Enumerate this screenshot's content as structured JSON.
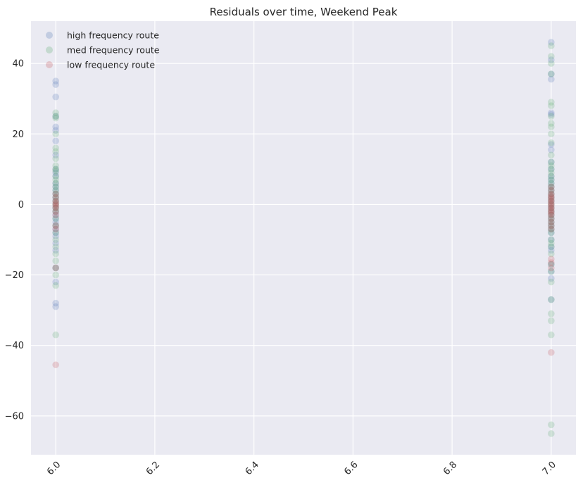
{
  "chart_data": {
    "type": "scatter",
    "title": "Residuals over time, Weekend Peak",
    "xlabel": "",
    "ylabel": "",
    "xlim": [
      5.95,
      7.05
    ],
    "ylim": [
      -71,
      52
    ],
    "x_ticks": [
      6.0,
      6.2,
      6.4,
      6.6,
      6.8,
      7.0
    ],
    "x_tick_labels": [
      "6.0",
      "6.2",
      "6.4",
      "6.6",
      "6.8",
      "7.0"
    ],
    "y_ticks": [
      -60,
      -40,
      -20,
      0,
      20,
      40
    ],
    "y_tick_labels": [
      "−60",
      "−40",
      "−20",
      "0",
      "20",
      "40"
    ],
    "grid": true,
    "legend_position": "top-left",
    "series": [
      {
        "name": "high frequency route",
        "color": "#4c72b0",
        "points": [
          {
            "x": 6,
            "values": [
              35,
              34,
              30.5,
              25,
              22,
              21,
              18,
              14,
              10,
              9,
              8,
              6,
              5,
              4,
              3,
              2,
              1,
              0,
              -1,
              -2,
              -3,
              -4,
              -5,
              -6,
              -7,
              -8,
              -9,
              -11,
              -13,
              -18,
              -22,
              -28,
              -29
            ]
          },
          {
            "x": 7,
            "values": [
              46,
              41,
              37,
              35.5,
              26,
              25.5,
              17,
              15.5,
              12,
              10,
              8,
              7,
              6,
              5,
              4,
              3,
              2,
              1,
              0,
              -1,
              -2,
              -3,
              -4,
              -5,
              -6,
              -7,
              -8,
              -10,
              -12,
              -13,
              -17,
              -19,
              -21,
              -27
            ]
          }
        ]
      },
      {
        "name": "med frequency route",
        "color": "#55a868",
        "points": [
          {
            "x": 6,
            "values": [
              26,
              25,
              24.5,
              20,
              16,
              15,
              13,
              11,
              10,
              9.5,
              8,
              7,
              6,
              5,
              4,
              3,
              2,
              1,
              0,
              -1,
              -2,
              -4,
              -6,
              -8,
              -10,
              -12,
              -14,
              -16,
              -18,
              -20,
              -23,
              -37
            ]
          },
          {
            "x": 7,
            "values": [
              45,
              42,
              40,
              37,
              29,
              28,
              25,
              23,
              22,
              20,
              17.5,
              14,
              12,
              11,
              10,
              9,
              8,
              7,
              6,
              5,
              4,
              3,
              2,
              1,
              0,
              -1,
              -2,
              -3,
              -4,
              -5,
              -6,
              -7,
              -8,
              -10,
              -11,
              -12,
              -14,
              -17,
              -19,
              -22,
              -27,
              -31,
              -33,
              -37,
              -62.5,
              -65
            ]
          }
        ]
      },
      {
        "name": "low frequency route",
        "color": "#c44e52",
        "points": [
          {
            "x": 6,
            "values": [
              3,
              2,
              1,
              0.5,
              0,
              -0.5,
              -1,
              -2,
              -3,
              -6,
              -7,
              -18,
              -45.5
            ]
          },
          {
            "x": 7,
            "values": [
              5,
              4,
              3,
              2.5,
              2,
              1.5,
              1,
              0.5,
              0,
              -0.5,
              -1,
              -1.5,
              -2,
              -2.5,
              -3,
              -4,
              -5,
              -6,
              -7,
              -15.5,
              -16.5,
              -18,
              -42
            ]
          }
        ]
      }
    ]
  }
}
